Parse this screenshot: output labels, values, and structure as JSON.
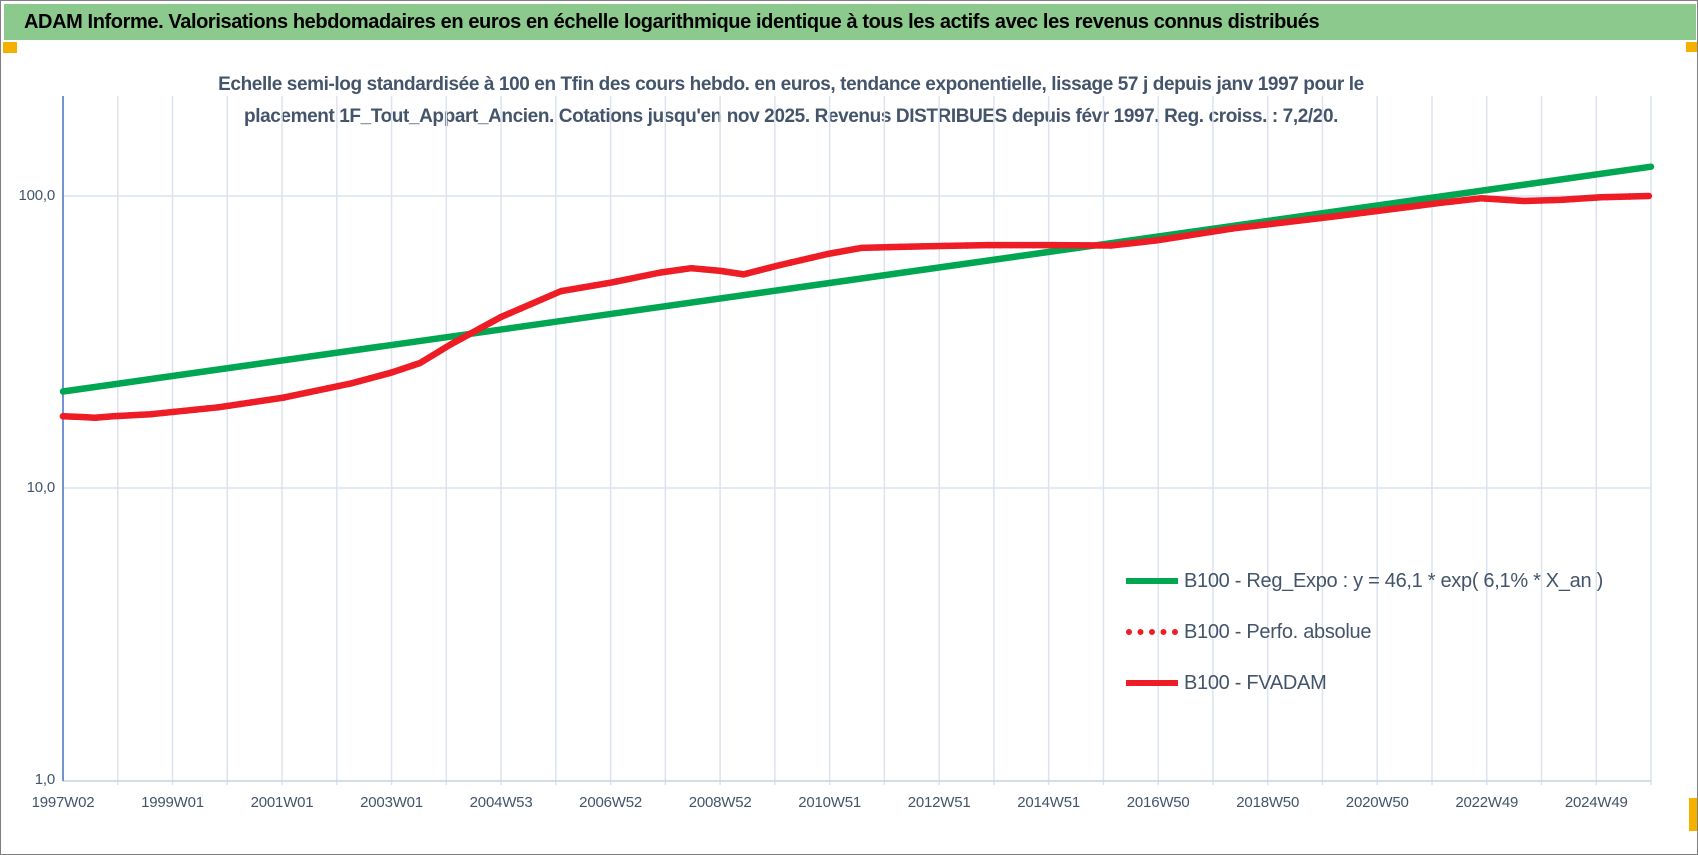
{
  "window": {
    "border_color": "#7f7f7f",
    "background": "#ffffff"
  },
  "header": {
    "text": "ADAM Informe. Valorisations hebdomadaires en euros en échelle logarithmique identique à tous les actifs avec les revenus connus distribués",
    "background": "#8CC98C",
    "text_color": "#000000"
  },
  "markers": {
    "color": "#F5B100",
    "positions": [
      "below-header-left",
      "below-header-right",
      "bottom-right-scroll"
    ]
  },
  "chart": {
    "title_line1": "Echelle semi-log standardisée à 100 en Tfin des cours hebdo. en euros, tendance exponentielle, lissage 57 j depuis janv 1997 pour le",
    "title_line2": "placement 1F_Tout_Appart_Ancien. Cotations jusqu'en nov 2025. Revenus DISTRIBUES depuis févr 1997. Reg. croiss. : 7,2/20.",
    "title_color": "#44546A"
  },
  "chart_data": {
    "type": "line",
    "title": "Echelle semi-log standardisée à 100 en Tfin des cours hebdo. en euros, tendance exponentielle, lissage 57 j depuis janv 1997 pour le placement 1F_Tout_Appart_Ancien. Cotations jusqu'en nov 2025. Revenus DISTRIBUES depuis févr 1997. Reg. croiss. : 7,2/20.",
    "x_axis": {
      "unit": "week index since 1997W02",
      "tick_labels": [
        "1997W02",
        "1999W01",
        "2001W01",
        "2003W01",
        "2004W53",
        "2006W52",
        "2008W52",
        "2010W51",
        "2012W51",
        "2014W51",
        "2016W50",
        "2018W50",
        "2020W50",
        "2022W49",
        "2024W49"
      ],
      "total_weeks": 1512,
      "gridline_count": 29,
      "gridlines": "every year (52 weeks), labels every 2 years"
    },
    "y_axis": {
      "scale": "log",
      "tick_labels": [
        "100,0",
        "10,0",
        "1,0"
      ],
      "tick_values": [
        100,
        10,
        1
      ],
      "range": [
        1,
        220
      ],
      "grid": true
    },
    "legend_position": "inside-lower-right",
    "axis_color": "#4472C4",
    "gridline_color": "#DCE3EE",
    "series": [
      {
        "name": "B100 - Reg_Expo : y = 46,1 * exp( 6,1% *  X_an )",
        "color": "#00A651",
        "style": "solid",
        "points": [
          [
            0,
            21.4
          ],
          [
            1512,
            126.0
          ]
        ]
      },
      {
        "name": "B100 - Perfo. absolue",
        "color": "#EE1C25",
        "style": "dotted",
        "note": "coincident with B100 - FVADAM, hidden beneath it",
        "points_same_as": "B100 - FVADAM"
      },
      {
        "name": "B100 - FVADAM",
        "color": "#EE1C25",
        "style": "solid",
        "points": [
          [
            0,
            17.6
          ],
          [
            18,
            17.5
          ],
          [
            30,
            17.4
          ],
          [
            48,
            17.6
          ],
          [
            84,
            17.9
          ],
          [
            148,
            18.9
          ],
          [
            210,
            20.4
          ],
          [
            274,
            22.8
          ],
          [
            312,
            24.8
          ],
          [
            340,
            26.8
          ],
          [
            369,
            31.0
          ],
          [
            417,
            38.5
          ],
          [
            474,
            47.2
          ],
          [
            522,
            50.5
          ],
          [
            569,
            54.7
          ],
          [
            598,
            56.6
          ],
          [
            626,
            55.4
          ],
          [
            648,
            53.9
          ],
          [
            681,
            57.8
          ],
          [
            728,
            63.3
          ],
          [
            760,
            66.4
          ],
          [
            823,
            67.3
          ],
          [
            880,
            67.9
          ],
          [
            940,
            67.9
          ],
          [
            998,
            67.7
          ],
          [
            1042,
            70.5
          ],
          [
            1115,
            77.5
          ],
          [
            1210,
            85.1
          ],
          [
            1312,
            94.8
          ],
          [
            1350,
            98.2
          ],
          [
            1391,
            96.1
          ],
          [
            1426,
            97.0
          ],
          [
            1464,
            99.0
          ],
          [
            1510,
            100.0
          ]
        ]
      }
    ]
  }
}
